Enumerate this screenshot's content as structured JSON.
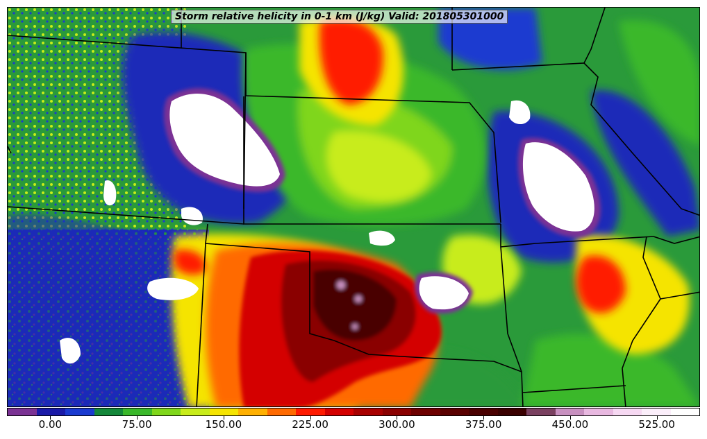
{
  "title": "Storm relative helicity in 0-1 km (J/kg) Valid: 201805301000",
  "colorbar": {
    "colors": [
      "#7b3294",
      "#1a1aa8",
      "#1a3ad0",
      "#14883a",
      "#3ab82a",
      "#7fd61a",
      "#c8ec1a",
      "#f5e400",
      "#ffb000",
      "#ff6a00",
      "#ff1a00",
      "#d40000",
      "#a80000",
      "#8a0000",
      "#6e0000",
      "#5a0000",
      "#4a0000",
      "#3a0000",
      "#7a4060",
      "#c890c0",
      "#e8b8e0",
      "#f6d8f2",
      "#fbeefa",
      "#ffffff"
    ],
    "tick_labels": [
      "0.00",
      "75.00",
      "150.00",
      "225.00",
      "300.00",
      "375.00",
      "450.00",
      "525.00"
    ],
    "tick_values": [
      0,
      75,
      150,
      225,
      300,
      375,
      450,
      525
    ],
    "min": -37.5,
    "max": 562.5
  },
  "map": {
    "field": "Storm relative helicity in 0-1 km",
    "units": "J/kg",
    "valid": "201805301000"
  }
}
